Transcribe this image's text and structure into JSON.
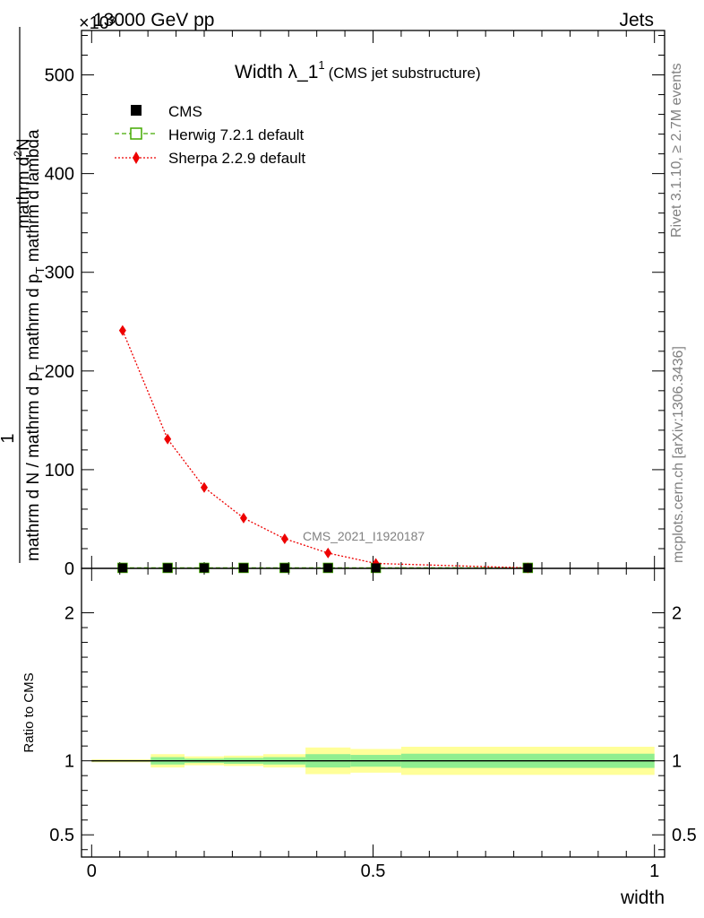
{
  "header": {
    "left": "13000 GeV pp",
    "right": "Jets"
  },
  "side_labels": {
    "rivet": "Rivet 3.1.10, ≥ 2.7M events",
    "mcplots": "mcplots.cern.ch [arXiv:1306.3436]"
  },
  "chart_data": [
    {
      "type": "line",
      "panel": "main",
      "title": "Width λ_1",
      "title_superscript": "1",
      "subtitle": "(CMS jet substructure)",
      "watermark": "CMS_2021_I1920187",
      "y_multiplier": "×10³",
      "ylabel_numerator": "1",
      "ylabel_den_part1": "mathrm d N / mathrm d p",
      "ylabel_den_part2": "mathrm d p",
      "ylabel_den_part3": "mathrm d lambda",
      "ylabel_sub": "T",
      "ylabel_numer_part1": "mathrm d",
      "ylabel_numer_sup": "2",
      "ylabel_numer_part2": "N",
      "xlim": [
        0,
        1
      ],
      "ylim": [
        0,
        545
      ],
      "y_ticks": [
        0,
        100,
        200,
        300,
        400,
        500
      ],
      "legend_position": "top-left",
      "x_bin_edges": [
        0.0,
        0.105,
        0.165,
        0.235,
        0.305,
        0.38,
        0.46,
        0.55,
        1.0
      ],
      "series": [
        {
          "name": "CMS",
          "color": "#000000",
          "marker": "filled-square",
          "x": [
            0.055,
            0.135,
            0.2,
            0.27,
            0.343,
            0.42,
            0.505,
            0.775
          ],
          "values": [
            0.5,
            0.5,
            0.5,
            0.5,
            0.5,
            0.5,
            0.5,
            0.5
          ]
        },
        {
          "name": "Herwig 7.2.1 default",
          "color": "#44aa00",
          "marker": "open-square",
          "line": "dashed",
          "x": [
            0.055,
            0.135,
            0.2,
            0.27,
            0.343,
            0.42,
            0.505,
            0.775
          ],
          "values": [
            0.5,
            0.5,
            0.5,
            0.5,
            0.5,
            0.5,
            0.5,
            0.5
          ]
        },
        {
          "name": "Sherpa 2.2.9 default",
          "color": "#ee0000",
          "marker": "diamond",
          "line": "dotted",
          "x": [
            0.055,
            0.135,
            0.2,
            0.27,
            0.343,
            0.42,
            0.505,
            0.775
          ],
          "values": [
            241,
            131,
            82,
            51,
            30,
            15.5,
            5,
            0.5
          ]
        }
      ]
    },
    {
      "type": "area",
      "panel": "ratio",
      "ylabel": "Ratio to CMS",
      "xlabel": "width",
      "xlim": [
        0,
        1
      ],
      "ylim": [
        0.35,
        2.3
      ],
      "x_ticks": [
        0,
        0.5,
        1
      ],
      "y_ticks": [
        0.5,
        1,
        2
      ],
      "x_tick_labels": [
        "0",
        "0.5",
        "1"
      ],
      "y_tick_labels": [
        "0.5",
        "1",
        "2"
      ],
      "bands": {
        "x_edges": [
          0.0,
          0.105,
          0.165,
          0.235,
          0.305,
          0.38,
          0.46,
          0.55,
          1.0
        ],
        "green_half_width": [
          0.005,
          0.025,
          0.015,
          0.02,
          0.025,
          0.045,
          0.04,
          0.048
        ],
        "yellow_half_width": [
          0.01,
          0.045,
          0.03,
          0.035,
          0.045,
          0.09,
          0.08,
          0.095
        ],
        "green_color": "#90ee90",
        "yellow_color": "#ffff99"
      },
      "reference_line": 1
    }
  ]
}
